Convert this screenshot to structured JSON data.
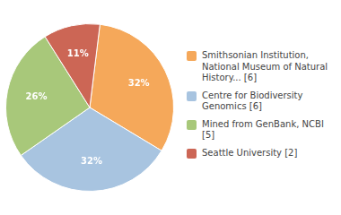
{
  "chart_data": {
    "type": "pie",
    "categories": [
      "Smithsonian Institution,\nNational Museum of Natural\nHistory... [6]",
      "Centre for Biodiversity\nGenomics [6]",
      "Mined from GenBank, NCBI [5]",
      "Seattle University [2]"
    ],
    "values": [
      32,
      32,
      26,
      11
    ],
    "value_labels": [
      "32%",
      "32%",
      "26%",
      "11%"
    ],
    "colors": [
      "#F5A85A",
      "#A8C4E0",
      "#A8C87A",
      "#CC6655"
    ],
    "data_labels": true,
    "legend": "right"
  }
}
